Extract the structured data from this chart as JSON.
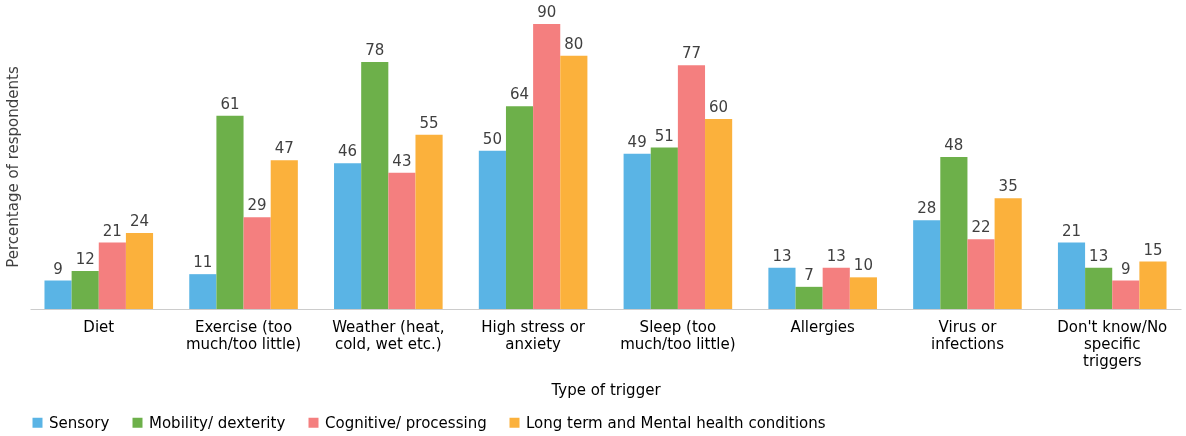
{
  "chart_data": {
    "type": "bar",
    "xlabel": "Type of trigger",
    "ylabel": "Percentage of respondents",
    "categories": [
      "Diet",
      "Exercise (too much/too little)",
      "Weather (heat, cold, wet etc.)",
      "High stress or anxiety",
      "Sleep (too much/too little)",
      "Allergies",
      "Virus or infections",
      "Don't know/No specific triggers"
    ],
    "series": [
      {
        "name": "Sensory",
        "color": "#5ab4e5",
        "values": [
          9,
          11,
          46,
          50,
          49,
          13,
          28,
          21
        ]
      },
      {
        "name": "Mobility/ dexterity",
        "color": "#6db04a",
        "values": [
          12,
          61,
          78,
          64,
          51,
          7,
          48,
          13
        ]
      },
      {
        "name": "Cognitive/ processing",
        "color": "#f47f7f",
        "values": [
          21,
          29,
          43,
          90,
          77,
          13,
          22,
          9
        ]
      },
      {
        "name": "Long term and Mental health conditions",
        "color": "#fbb13c",
        "values": [
          24,
          47,
          55,
          80,
          60,
          10,
          35,
          15
        ]
      }
    ],
    "data_labels": true,
    "legend": "bottom",
    "grid": false,
    "tick_labels": "x"
  }
}
